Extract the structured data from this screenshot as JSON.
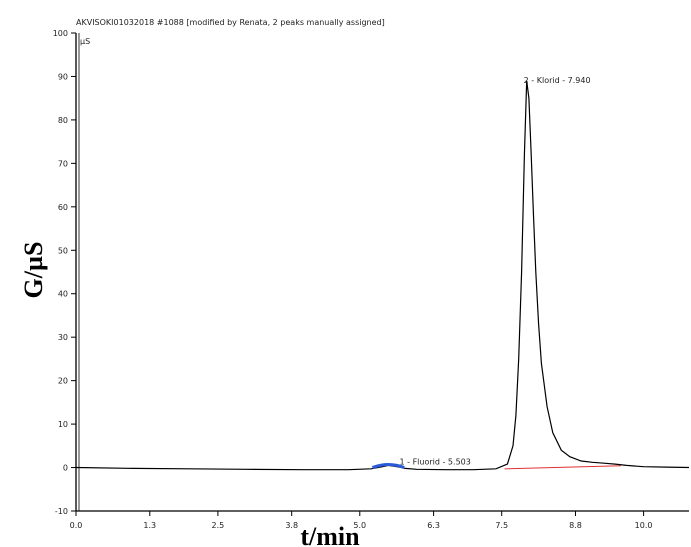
{
  "chart_data": {
    "type": "line",
    "title": "AKVISOKI01032018 #1088 [modified by Renata, 2 peaks manually assigned]",
    "unit_label": "µS",
    "xlabel": "t/min",
    "ylabel": "G/µS",
    "xlim": [
      0.0,
      10.8
    ],
    "ylim": [
      -10,
      100
    ],
    "x_ticks": [
      "0.0",
      "1.3",
      "2.5",
      "3.8",
      "5.0",
      "6.3",
      "7.5",
      "8.8",
      "10.0"
    ],
    "y_ticks": [
      "-10",
      "0",
      "10",
      "20",
      "30",
      "40",
      "50",
      "60",
      "70",
      "80",
      "90",
      "100"
    ],
    "grid": false,
    "series": [
      {
        "x": [
          0.0,
          1.0,
          2.0,
          3.0,
          4.0,
          4.8,
          5.2,
          5.4,
          5.5,
          5.6,
          5.7,
          5.8,
          6.0,
          6.5,
          7.0,
          7.4,
          7.6,
          7.7,
          7.75,
          7.8,
          7.85,
          7.9,
          7.94,
          7.98,
          8.02,
          8.06,
          8.1,
          8.15,
          8.2,
          8.3,
          8.4,
          8.55,
          8.7,
          8.9,
          9.1,
          9.3,
          9.5,
          9.7,
          10.0,
          10.4,
          10.8
        ],
        "y": [
          0.0,
          -0.2,
          -0.3,
          -0.4,
          -0.5,
          -0.5,
          -0.3,
          0.2,
          0.5,
          0.3,
          0.1,
          -0.2,
          -0.4,
          -0.5,
          -0.5,
          -0.3,
          0.8,
          5.0,
          12.0,
          25.0,
          45.0,
          72.0,
          89.0,
          85.0,
          72.0,
          58.0,
          45.0,
          33.0,
          24.0,
          14.0,
          8.0,
          4.0,
          2.5,
          1.5,
          1.2,
          1.0,
          0.8,
          0.5,
          0.2,
          0.1,
          0.0
        ]
      }
    ],
    "peaks": [
      {
        "label": "1 - Fluorid - 5.503",
        "time": 5.503
      },
      {
        "label": "2 - Klorid - 7.940",
        "time": 7.94,
        "height": 89
      }
    ],
    "colors": {
      "signal": "#000000",
      "baseline": "#e03030",
      "fluorid_mark": "#2a5bd7"
    }
  }
}
